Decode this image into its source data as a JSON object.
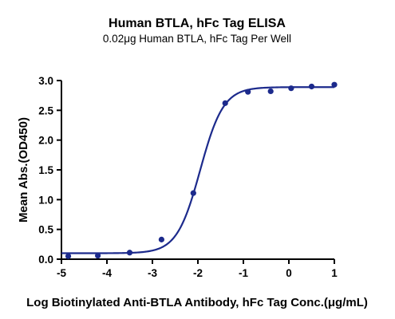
{
  "chart_data": {
    "type": "scatter",
    "title": "Human BTLA, hFc Tag ELISA",
    "subtitle": "0.02μg Human BTLA, hFc Tag Per Well",
    "xlabel": "Log Biotinylated Anti-BTLA Antibody, hFc Tag Conc.(μg/mL)",
    "ylabel": "Mean Abs.(OD450)",
    "xlim": [
      -5,
      1
    ],
    "ylim": [
      0,
      3.0
    ],
    "x_ticks": [
      "-5",
      "-4",
      "-3",
      "-2",
      "-1",
      "0",
      "1"
    ],
    "y_ticks": [
      "0.0",
      "0.5",
      "1.0",
      "1.5",
      "2.0",
      "2.5",
      "3.0"
    ],
    "grid": false,
    "color": "#1c2a8c",
    "series": [
      {
        "kind": "points",
        "x": [
          -4.85,
          -4.2,
          -3.5,
          -2.8,
          -2.1,
          -1.4,
          -0.9,
          -0.4,
          0.05,
          0.5,
          1.0
        ],
        "y": [
          0.05,
          0.06,
          0.11,
          0.33,
          1.11,
          2.62,
          2.81,
          2.82,
          2.87,
          2.9,
          2.93
        ]
      },
      {
        "kind": "fit-curve",
        "model": "4PL",
        "bottom": 0.1,
        "top": 2.89,
        "logEC50": -1.95,
        "hillslope": 1.7,
        "xrange": [
          -5,
          1
        ]
      }
    ]
  }
}
